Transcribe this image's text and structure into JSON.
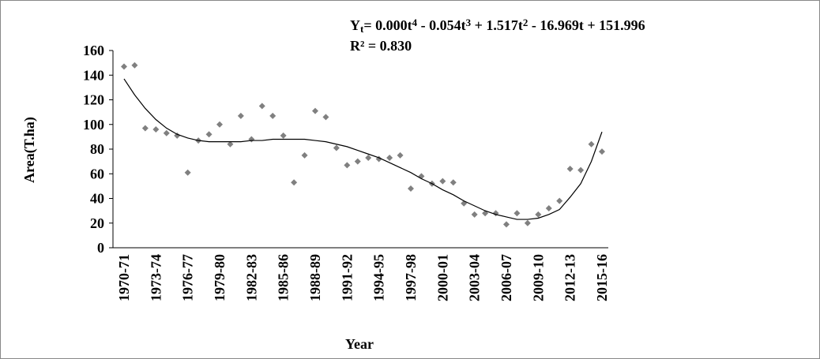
{
  "chart_data": {
    "type": "scatter",
    "categories": [
      "1970-71",
      null,
      null,
      "1973-74",
      null,
      null,
      "1976-77",
      null,
      null,
      "1979-80",
      null,
      null,
      "1982-83",
      null,
      null,
      "1985-86",
      null,
      null,
      "1988-89",
      null,
      null,
      "1991-92",
      null,
      null,
      "1994-95",
      null,
      null,
      "1997-98",
      null,
      null,
      "2000-01",
      null,
      null,
      "2003-04",
      null,
      null,
      "2006-07",
      null,
      null,
      "2009-10",
      null,
      null,
      "2012-13",
      null,
      null,
      "2015-16"
    ],
    "series": [
      {
        "color": "#808080",
        "marker": "diamond",
        "values": [
          147,
          148,
          97,
          96,
          93,
          91,
          61,
          87,
          92,
          100,
          84,
          107,
          88,
          115,
          107,
          91,
          53,
          75,
          111,
          106,
          81,
          67,
          70,
          73,
          72,
          73,
          75,
          48,
          58,
          52,
          54,
          53,
          36,
          27,
          28,
          28,
          19,
          28,
          20,
          27,
          32,
          38,
          64,
          63,
          84,
          78
        ]
      },
      {
        "color": "#000000",
        "marker": "line",
        "values": [
          137,
          124,
          113,
          104,
          97,
          92,
          89,
          87,
          86,
          86,
          86,
          86,
          87,
          87,
          88,
          88,
          88,
          88,
          87,
          86,
          84,
          82,
          79,
          76,
          73,
          69,
          65,
          61,
          56,
          52,
          47,
          43,
          38,
          34,
          30,
          27,
          25,
          23,
          23,
          24,
          27,
          31,
          41,
          52,
          70,
          94
        ]
      }
    ],
    "ylim": [
      0,
      160
    ],
    "yticks": [
      0,
      20,
      40,
      60,
      80,
      100,
      120,
      140,
      160
    ],
    "x_label": "Year",
    "y_label": "Area(T.ha)",
    "equation": [
      {
        "text": "Y"
      },
      {
        "text": "t",
        "shift": "sub"
      },
      {
        "text": "= 0.000t"
      },
      {
        "text": "4",
        "shift": "sup"
      },
      {
        "text": " - 0.054t"
      },
      {
        "text": "3",
        "shift": "sup"
      },
      {
        "text": " + 1.517t"
      },
      {
        "text": "2",
        "shift": "sup"
      },
      {
        "text": " - 16.969t + 151.996"
      }
    ],
    "r_squared": "R² = 0.830"
  }
}
